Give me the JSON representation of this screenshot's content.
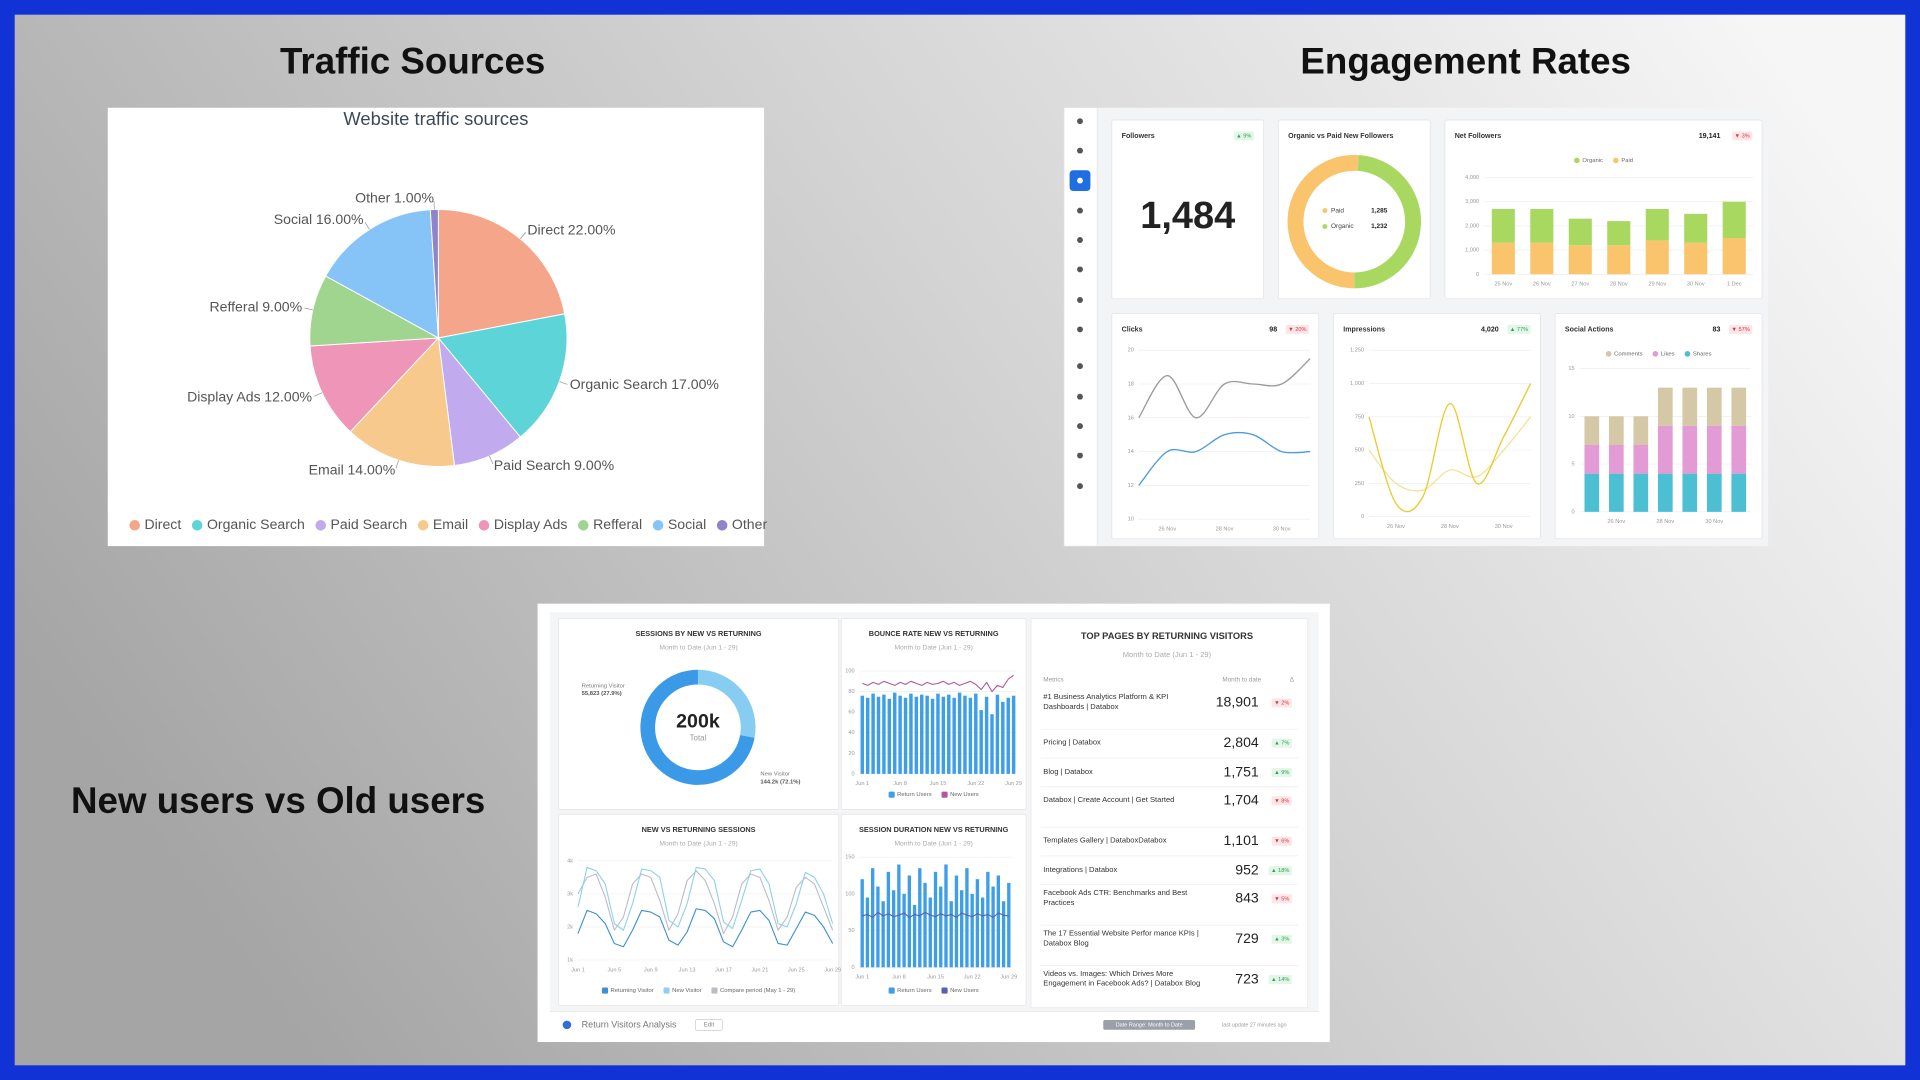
{
  "headings": {
    "traffic": "Traffic Sources",
    "engagement": "Engagement Rates",
    "users": "New users vs Old users"
  },
  "chart_data": [
    {
      "type": "pie",
      "title": "Website traffic sources",
      "categories": [
        "Direct",
        "Organic Search",
        "Paid Search",
        "Email",
        "Display Ads",
        "Refferal",
        "Social",
        "Other"
      ],
      "values": [
        22,
        17,
        9,
        14,
        12,
        9,
        16,
        1
      ],
      "value_labels": [
        "22.00%",
        "17.00%",
        "9.00%",
        "14.00%",
        "12.00%",
        "9.00%",
        "16.00%",
        "1.00%"
      ],
      "colors": [
        "#f4a58a",
        "#5dd5d8",
        "#c2aaee",
        "#f8c98c",
        "#ef95b7",
        "#a0d590",
        "#86c3f7",
        "#8f84c9"
      ]
    },
    {
      "type": "stat",
      "title": "Followers",
      "change": "▲ 9%",
      "values": [
        1484
      ],
      "value_labels": [
        "1,484"
      ]
    },
    {
      "type": "donut",
      "title": "Organic vs Paid New Followers",
      "categories": [
        "Paid",
        "Organic"
      ],
      "values": [
        1285,
        1232
      ],
      "value_labels": [
        "1,285",
        "1,232"
      ],
      "colors": [
        "#f9c46b",
        "#a9d861"
      ]
    },
    {
      "type": "stacked-bar",
      "title": "Net Followers",
      "total": "19,141",
      "change": "▼ 3%",
      "categories": [
        "25 Nov",
        "26 Nov",
        "27 Nov",
        "28 Nov",
        "29 Nov",
        "30 Nov",
        "1 Dec"
      ],
      "series": [
        {
          "name": "Organic",
          "color": "#a9d861",
          "values": [
            1400,
            1400,
            1100,
            1000,
            1300,
            1200,
            1500
          ]
        },
        {
          "name": "Paid",
          "color": "#f9c46b",
          "values": [
            1300,
            1300,
            1200,
            1200,
            1400,
            1300,
            1500
          ]
        }
      ],
      "ylim": [
        0,
        4000
      ],
      "yticks": [
        0,
        {
          "value": 1000,
          "label": "1,000"
        },
        {
          "value": 2000,
          "label": "2,000"
        },
        {
          "value": 3000,
          "label": "3,000"
        },
        {
          "value": 4000,
          "label": "4,000"
        }
      ]
    },
    {
      "type": "line",
      "title": "Clicks",
      "total": "98",
      "change": "▼ 20%",
      "smooth": true,
      "categories": [
        null,
        "26 Nov",
        null,
        "28 Nov",
        null,
        "30 Nov",
        null
      ],
      "series": [
        {
          "color": "#9a9a9a",
          "values": [
            16,
            18.5,
            16,
            18,
            18,
            18,
            19.5
          ]
        },
        {
          "color": "#4a9be0",
          "values": [
            12,
            14,
            14,
            15,
            15,
            14,
            14
          ]
        }
      ],
      "ylim": [
        10,
        20
      ],
      "yticks": [
        10,
        12,
        14,
        16,
        18,
        20
      ]
    },
    {
      "type": "line",
      "title": "Impressions",
      "total": "4,020",
      "change": "▲ 77%",
      "smooth": true,
      "categories": [
        null,
        "26 Nov",
        null,
        "28 Nov",
        null,
        "30 Nov",
        null
      ],
      "series": [
        {
          "color": "#eccb2e",
          "values": [
            750,
            100,
            150,
            850,
            250,
            600,
            1000
          ]
        },
        {
          "color": "#f3e39a",
          "values": [
            500,
            250,
            200,
            350,
            300,
            500,
            750
          ]
        }
      ],
      "ylim": [
        0,
        1250
      ],
      "yticks": [
        0,
        250,
        500,
        750,
        {
          "value": 1000,
          "label": "1,000"
        },
        {
          "value": 1250,
          "label": "1,250"
        }
      ]
    },
    {
      "type": "stacked-bar",
      "title": "Social Actions",
      "total": "83",
      "change": "▼ 57%",
      "categories": [
        null,
        "26 Nov",
        null,
        "28 Nov",
        null,
        "30 Nov",
        null
      ],
      "series": [
        {
          "name": "Comments",
          "color": "#d4c8a6",
          "values": [
            3,
            3,
            3,
            4,
            4,
            4,
            4
          ]
        },
        {
          "name": "Likes",
          "color": "#e39bd5",
          "values": [
            3,
            3,
            3,
            5,
            5,
            5,
            5
          ]
        },
        {
          "name": "Shares",
          "color": "#4cbfd3",
          "values": [
            4,
            4,
            4,
            4,
            4,
            4,
            4
          ]
        }
      ],
      "ylim": [
        0,
        15
      ],
      "yticks": [
        0,
        5,
        10,
        15
      ]
    },
    {
      "type": "donut",
      "title": "SESSIONS BY NEW VS RETURNING",
      "subtitle": "Month to Date (Jun 1 - 29)",
      "categories": [
        "Returning Visitor",
        "New Visitor"
      ],
      "values": [
        55823,
        144200
      ],
      "value_labels": [
        "55,823 (27.9%)",
        "144.2k (72.1%)"
      ],
      "colors": [
        "#86cdf1",
        "#3b9ae8"
      ],
      "center_value": "200k",
      "center_label": "Total"
    },
    {
      "type": "bar",
      "title": "BOUNCE RATE NEW VS RETURNING",
      "subtitle": "Month to Date (Jun 1 - 29)",
      "categories": [
        "Jun 1",
        null,
        null,
        null,
        null,
        null,
        null,
        "Jun 8",
        null,
        null,
        null,
        null,
        null,
        null,
        "Jun 15",
        null,
        null,
        null,
        null,
        null,
        null,
        "Jun 22",
        null,
        null,
        null,
        null,
        null,
        null,
        "Jun 29"
      ],
      "series": [
        {
          "name": "Return Users",
          "type": "bar",
          "color": "#3f9ee8",
          "values": [
            76,
            74,
            78,
            75,
            77,
            73,
            79,
            76,
            74,
            78,
            75,
            77,
            76,
            73,
            78,
            75,
            77,
            74,
            79,
            76,
            74,
            78,
            62,
            75,
            58,
            77,
            70,
            74,
            76
          ]
        },
        {
          "name": "New Users",
          "type": "line",
          "color": "#b5579c",
          "values": [
            88,
            86,
            89,
            87,
            90,
            88,
            86,
            89,
            87,
            90,
            88,
            86,
            89,
            87,
            88,
            90,
            87,
            89,
            86,
            88,
            90,
            87,
            82,
            89,
            80,
            86,
            84,
            92,
            96
          ]
        }
      ],
      "ylim": [
        0,
        100
      ],
      "yticks": [
        0,
        20,
        40,
        60,
        80,
        100
      ]
    },
    {
      "type": "line",
      "title": "NEW VS RETURNING SESSIONS",
      "subtitle": "Month to Date (Jun 1 - 29)",
      "categories": [
        "Jun 1",
        null,
        null,
        null,
        "Jun 5",
        null,
        null,
        null,
        "Jun 9",
        null,
        null,
        null,
        "Jun 13",
        null,
        null,
        null,
        "Jun 17",
        null,
        null,
        null,
        "Jun 21",
        null,
        null,
        null,
        "Jun 25",
        null,
        null,
        null,
        "Jun 29"
      ],
      "series": [
        {
          "name": "Returning Visitor",
          "color": "#3d8fd1",
          "values": [
            1800,
            2500,
            2400,
            2100,
            1500,
            1400,
            1900,
            2500,
            2450,
            2300,
            1600,
            1450,
            1850,
            2550,
            2500,
            2250,
            1550,
            1400,
            1900,
            2450,
            2500,
            2200,
            1500,
            1450,
            1950,
            2450,
            2350,
            2000,
            1500
          ]
        },
        {
          "name": "New Visitor",
          "color": "#8fd0ee",
          "values": [
            2600,
            3800,
            3700,
            3300,
            2100,
            1900,
            2700,
            3750,
            3700,
            3500,
            2200,
            2000,
            2700,
            3800,
            3750,
            3400,
            2150,
            1950,
            2800,
            3700,
            3750,
            3300,
            2100,
            2000,
            2700,
            3650,
            3500,
            3000,
            2100
          ]
        },
        {
          "name": "Compare period (May 1 - 29)",
          "color": "#b9bdc5",
          "values": [
            3000,
            3500,
            3600,
            2900,
            1900,
            2300,
            3300,
            3600,
            3500,
            2800,
            1900,
            2400,
            3400,
            3700,
            3400,
            2700,
            1800,
            2300,
            3300,
            3600,
            3500,
            2800,
            1900,
            2300,
            3200,
            3500,
            3300,
            2600,
            1900
          ]
        }
      ],
      "ylim": [
        1000,
        4000
      ],
      "yticks": [
        {
          "value": 1000,
          "label": "1k"
        },
        {
          "value": 2000,
          "label": "2k"
        },
        {
          "value": 3000,
          "label": "3k"
        },
        {
          "value": 4000,
          "label": "4k"
        }
      ]
    },
    {
      "type": "bar",
      "title": "SESSION DURATION NEW VS RETURNING",
      "subtitle": "Month to Date (Jun 1 - 29)",
      "categories": [
        "Jun 1",
        null,
        null,
        null,
        null,
        null,
        null,
        "Jun 8",
        null,
        null,
        null,
        null,
        null,
        null,
        "Jun 15",
        null,
        null,
        null,
        null,
        null,
        null,
        "Jun 22",
        null,
        null,
        null,
        null,
        null,
        null,
        "Jun 29"
      ],
      "series": [
        {
          "name": "Return Users",
          "type": "bar",
          "color": "#3f9ee8",
          "values": [
            120,
            95,
            135,
            110,
            90,
            130,
            105,
            140,
            100,
            125,
            85,
            135,
            115,
            95,
            130,
            110,
            140,
            90,
            125,
            105,
            135,
            100,
            120,
            95,
            130,
            110,
            125,
            90,
            115
          ]
        },
        {
          "name": "New Users",
          "type": "line",
          "color": "#5a5fb0",
          "values": [
            70,
            72,
            68,
            75,
            70,
            73,
            69,
            71,
            74,
            68,
            72,
            70,
            75,
            71,
            69,
            73,
            70,
            72,
            68,
            74,
            71,
            69,
            73,
            70,
            72,
            68,
            74,
            71,
            70
          ]
        }
      ],
      "ylim": [
        0,
        150
      ],
      "yticks": [
        0,
        50,
        100,
        150
      ]
    }
  ],
  "top_pages": {
    "title": "TOP PAGES BY RETURNING VISITORS",
    "subtitle": "Month to Date (Jun 1 - 29)",
    "columns": [
      "Metrics",
      "Month to date",
      "Δ"
    ],
    "rows": [
      [
        "#1 Business Analytics Platform & KPI Dashboards | Databox",
        "18,901",
        "▼ 2%"
      ],
      [
        "Pricing | Databox",
        "2,804",
        "▲ 7%"
      ],
      [
        "Blog | Databox",
        "1,751",
        "▲ 9%"
      ],
      [
        "Databox | Create Account | Get Started",
        "1,704",
        "▼ 8%"
      ],
      [
        "Templates Gallery | DataboxDatabox",
        "1,101",
        "▼ 6%"
      ],
      [
        "Integrations | Databox",
        "952",
        "▲ 18%"
      ],
      [
        "Facebook Ads CTR: Benchmarks and Best Practices",
        "843",
        "▼ 5%"
      ],
      [
        "The 17 Essential Website Perfor mance KPIs | Databox Blog",
        "729",
        "▲ 3%"
      ],
      [
        "Videos vs. Images: Which Drives More Engagement in Facebook Ads? | Databox Blog",
        "723",
        "▲ 14%"
      ]
    ]
  },
  "footer": {
    "name": "Return Visitors Analysis",
    "edit": "Edit",
    "date_range": "Date Range: Month to Date",
    "updated": "last update 27 minutes ago"
  }
}
